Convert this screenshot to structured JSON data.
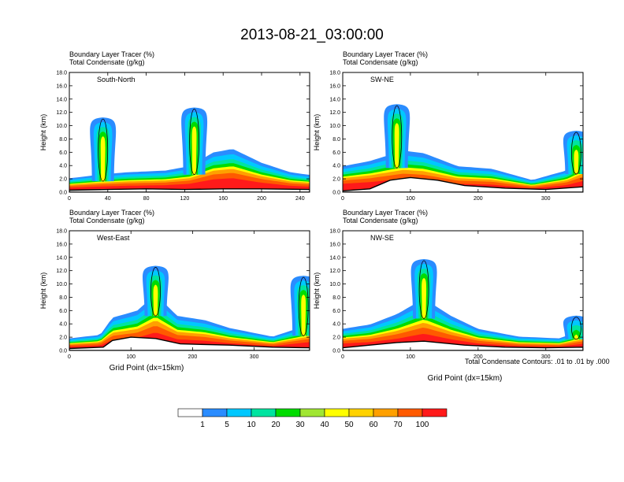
{
  "figure_title": "2013-08-21_03:00:00",
  "panel_header": {
    "line1": "Boundary Layer Tracer   (%)",
    "line2": "Total Condensate   (g/kg)"
  },
  "y_axis_label": "Height (km)",
  "x_axis_label": "Grid Point (dx=15km)",
  "contour_note": "Total Condensate Contours: .01 to .01 by .000",
  "colorbar": {
    "labels": [
      "1",
      "5",
      "10",
      "20",
      "30",
      "40",
      "50",
      "60",
      "70",
      "100"
    ],
    "colors": [
      "#ffffff",
      "#2a8cff",
      "#00c8ff",
      "#00e4a0",
      "#00dc00",
      "#a0e632",
      "#ffff00",
      "#ffd200",
      "#ffa000",
      "#ff5a00",
      "#ff1a1a"
    ]
  },
  "chart_data": [
    {
      "type": "heatmap",
      "panel": "South-North",
      "label": "South-North",
      "ylim": [
        0,
        18
      ],
      "xlim": [
        0,
        250
      ],
      "yticks": [
        "0.0",
        "2.0",
        "4.0",
        "6.0",
        "8.0",
        "10.0",
        "12.0",
        "14.0",
        "16.0",
        "18.0"
      ],
      "xticks": [
        0,
        40,
        80,
        120,
        160,
        200,
        240
      ],
      "terrain_height_km": [
        [
          0,
          0.3
        ],
        [
          40,
          0.4
        ],
        [
          80,
          0.5
        ],
        [
          120,
          0.4
        ],
        [
          160,
          0.5
        ],
        [
          200,
          0.5
        ],
        [
          250,
          0.4
        ]
      ],
      "tracer_top_km": [
        [
          0,
          1.6
        ],
        [
          30,
          2.0
        ],
        [
          60,
          2.3
        ],
        [
          100,
          2.5
        ],
        [
          125,
          3.0
        ],
        [
          150,
          4.6
        ],
        [
          170,
          5.0
        ],
        [
          200,
          3.4
        ],
        [
          230,
          2.3
        ],
        [
          250,
          2.0
        ]
      ],
      "plume_tops_km": [
        [
          35,
          11.0
        ],
        [
          130,
          12.5
        ]
      ]
    },
    {
      "type": "heatmap",
      "panel": "SW-NE",
      "label": "SW-NE",
      "ylim": [
        0,
        18
      ],
      "xlim": [
        0,
        355
      ],
      "yticks": [
        "0.0",
        "2.0",
        "4.0",
        "6.0",
        "8.0",
        "10.0",
        "12.0",
        "14.0",
        "16.0",
        "18.0"
      ],
      "xticks": [
        0,
        100,
        200,
        300
      ],
      "terrain_height_km": [
        [
          0,
          0.2
        ],
        [
          40,
          0.5
        ],
        [
          70,
          1.8
        ],
        [
          100,
          2.2
        ],
        [
          140,
          1.8
        ],
        [
          180,
          1.0
        ],
        [
          240,
          0.6
        ],
        [
          300,
          0.4
        ],
        [
          355,
          0.8
        ]
      ],
      "tracer_top_km": [
        [
          0,
          3.0
        ],
        [
          40,
          3.6
        ],
        [
          90,
          4.8
        ],
        [
          120,
          4.5
        ],
        [
          170,
          3.0
        ],
        [
          220,
          2.7
        ],
        [
          280,
          1.4
        ],
        [
          330,
          2.5
        ],
        [
          355,
          4.0
        ]
      ],
      "plume_tops_km": [
        [
          80,
          13.0
        ],
        [
          345,
          9.0
        ]
      ]
    },
    {
      "type": "heatmap",
      "panel": "West-East",
      "label": "West-East",
      "ylim": [
        0,
        18
      ],
      "xlim": [
        0,
        390
      ],
      "yticks": [
        "0.0",
        "2.0",
        "4.0",
        "6.0",
        "8.0",
        "10.0",
        "12.0",
        "14.0",
        "16.0",
        "18.0"
      ],
      "xticks": [
        0,
        100,
        200,
        300
      ],
      "terrain_height_km": [
        [
          0,
          0.3
        ],
        [
          55,
          0.5
        ],
        [
          70,
          1.5
        ],
        [
          100,
          2.0
        ],
        [
          140,
          1.8
        ],
        [
          180,
          1.0
        ],
        [
          260,
          0.8
        ],
        [
          330,
          0.5
        ],
        [
          390,
          0.4
        ]
      ],
      "tracer_top_km": [
        [
          0,
          1.4
        ],
        [
          50,
          1.8
        ],
        [
          70,
          3.8
        ],
        [
          110,
          4.6
        ],
        [
          140,
          6.5
        ],
        [
          175,
          4.0
        ],
        [
          220,
          3.5
        ],
        [
          260,
          2.6
        ],
        [
          330,
          1.6
        ],
        [
          390,
          3.0
        ]
      ],
      "plume_tops_km": [
        [
          140,
          12.5
        ],
        [
          380,
          11.0
        ]
      ]
    },
    {
      "type": "heatmap",
      "panel": "NW-SE",
      "label": "NW-SE",
      "ylim": [
        0,
        18
      ],
      "xlim": [
        0,
        355
      ],
      "yticks": [
        "0.0",
        "2.0",
        "4.0",
        "6.0",
        "8.0",
        "10.0",
        "12.0",
        "14.0",
        "16.0",
        "18.0"
      ],
      "xticks": [
        0,
        100,
        200,
        300
      ],
      "terrain_height_km": [
        [
          0,
          0.4
        ],
        [
          40,
          0.8
        ],
        [
          80,
          1.2
        ],
        [
          120,
          1.4
        ],
        [
          180,
          0.8
        ],
        [
          240,
          0.5
        ],
        [
          300,
          0.4
        ],
        [
          355,
          0.5
        ]
      ],
      "tracer_top_km": [
        [
          0,
          2.5
        ],
        [
          40,
          3.0
        ],
        [
          80,
          4.2
        ],
        [
          120,
          6.0
        ],
        [
          160,
          4.0
        ],
        [
          200,
          2.5
        ],
        [
          260,
          1.6
        ],
        [
          320,
          1.4
        ],
        [
          355,
          2.4
        ]
      ],
      "plume_tops_km": [
        [
          120,
          13.5
        ],
        [
          345,
          5.0
        ]
      ]
    }
  ]
}
